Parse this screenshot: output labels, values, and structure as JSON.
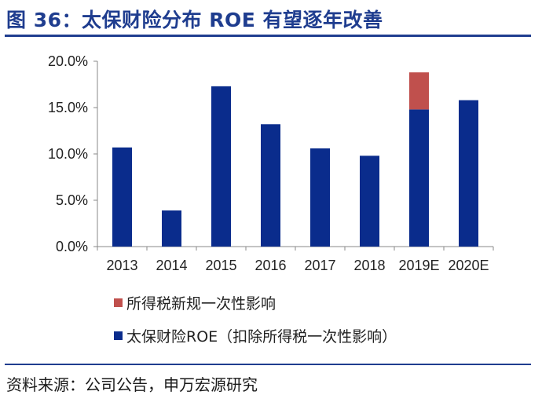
{
  "header": {
    "title": "图 36：太保财险分布 ROE 有望逐年改善"
  },
  "colors": {
    "base": "#0a2c8c",
    "tax": "#c0504d",
    "accent": "#1f3d8f"
  },
  "chart_data": {
    "type": "bar",
    "stacked": true,
    "categories": [
      "2013",
      "2014",
      "2015",
      "2016",
      "2017",
      "2018",
      "2019E",
      "2020E"
    ],
    "ylim": [
      0,
      20
    ],
    "yticks": [
      "0.0%",
      "5.0%",
      "10.0%",
      "15.0%",
      "20.0%"
    ],
    "y_tick_values": [
      0,
      5,
      10,
      15,
      20
    ],
    "series": [
      {
        "name": "太保财险ROE（扣除所得税一次性影响）",
        "values": [
          10.7,
          3.9,
          17.3,
          13.2,
          10.6,
          9.8,
          14.8,
          15.8
        ]
      },
      {
        "name": "所得税新规一次性影响",
        "values": [
          0,
          0,
          0,
          0,
          0,
          0,
          4.0,
          0
        ]
      }
    ],
    "legend_position": "bottom"
  },
  "source": "资料来源：公司公告，申万宏源研究"
}
